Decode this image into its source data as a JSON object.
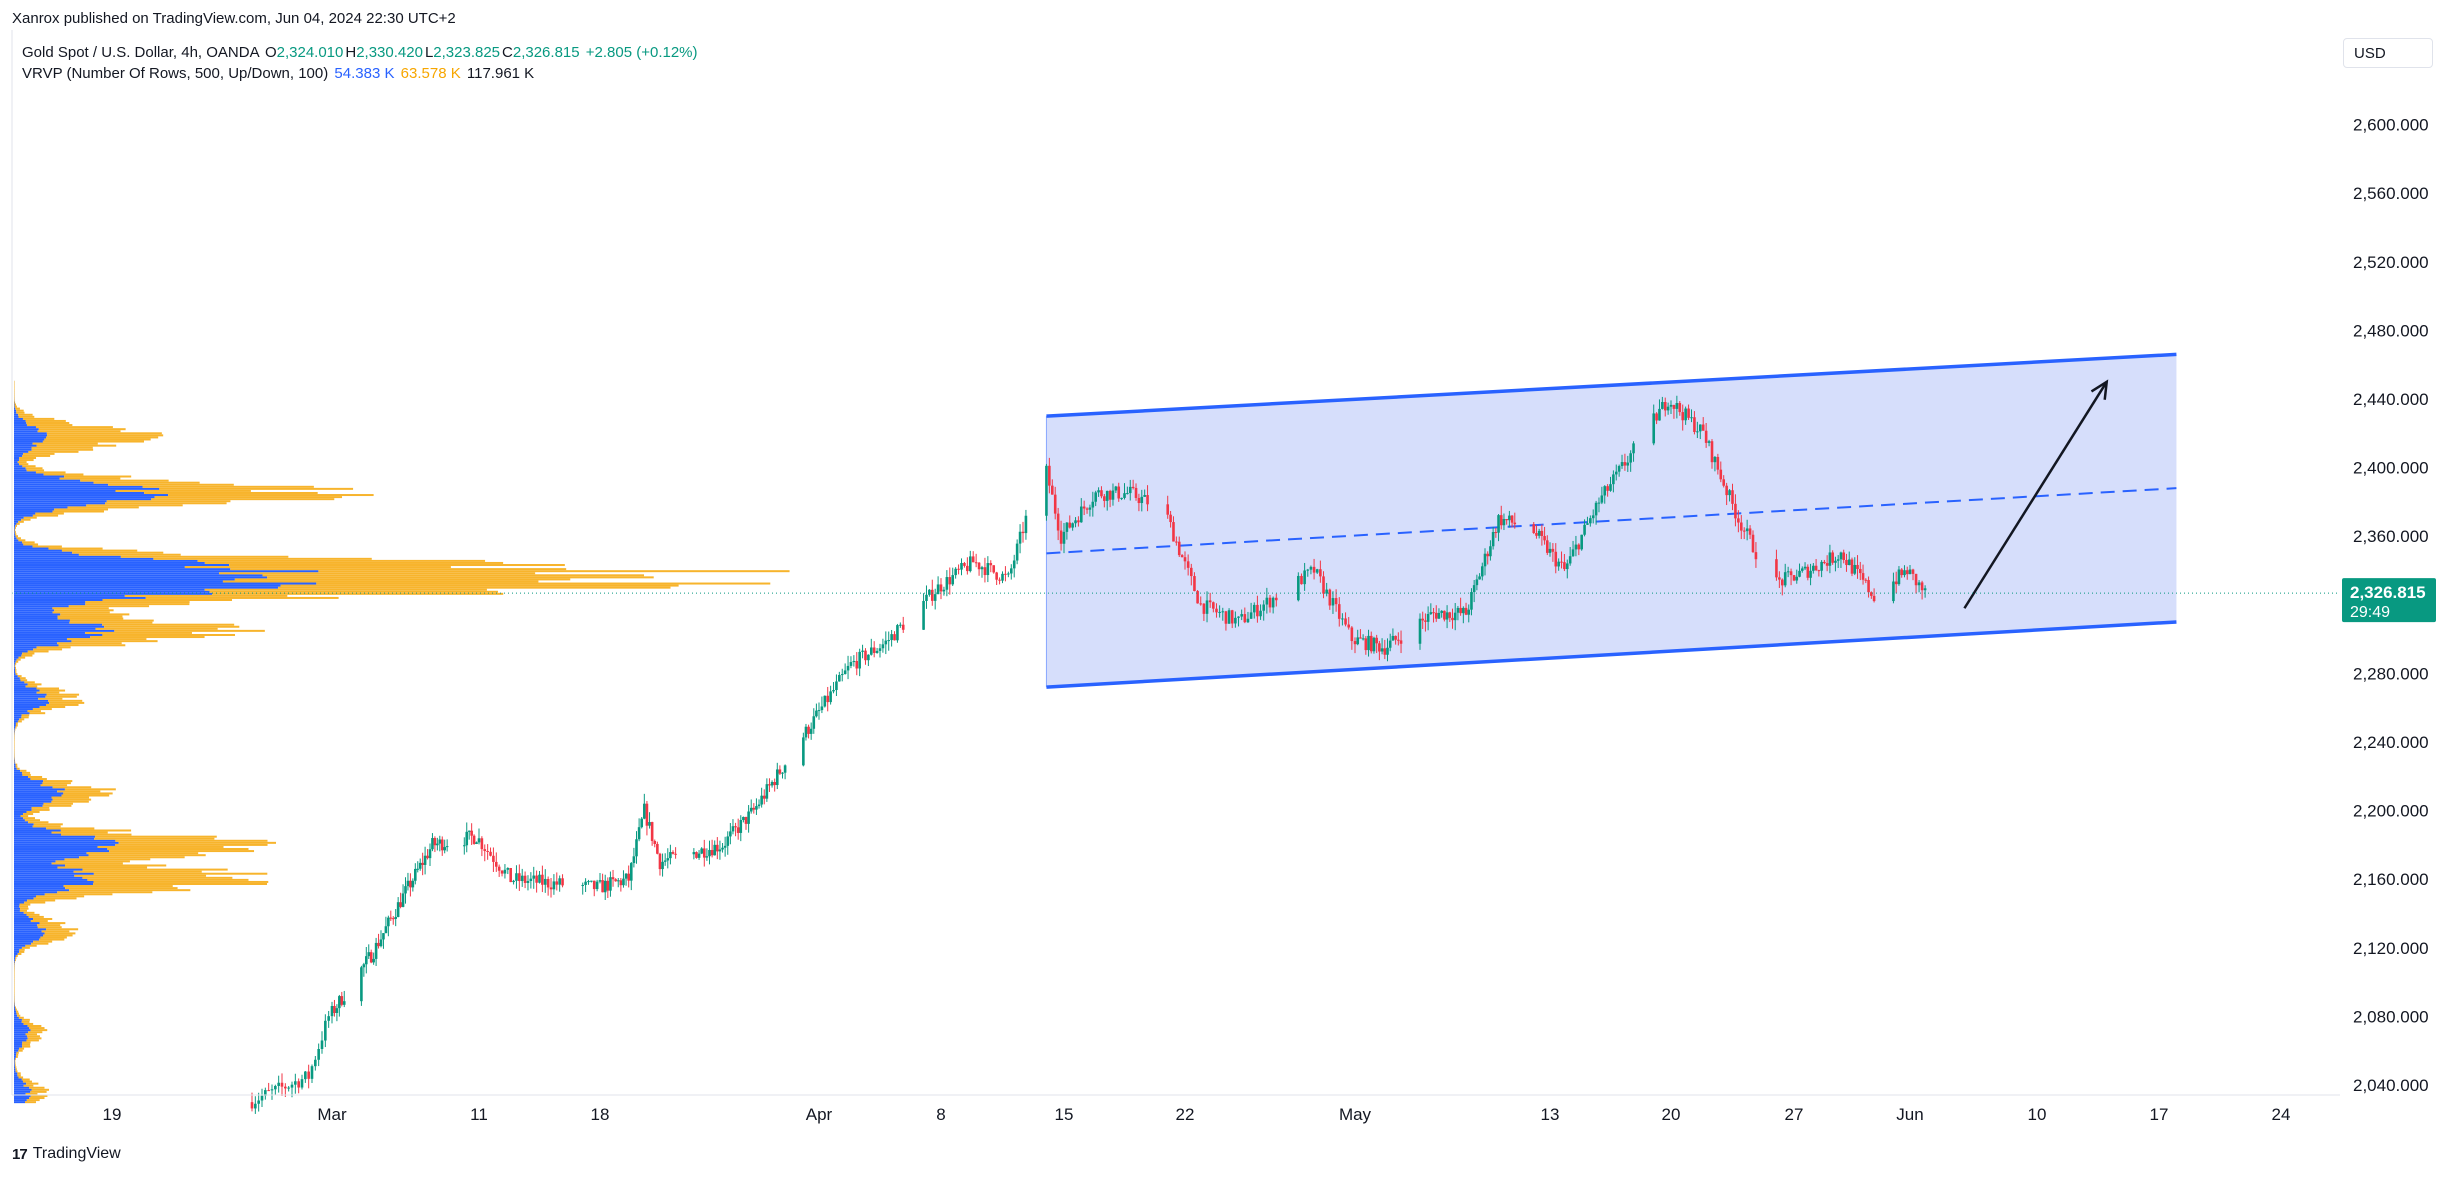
{
  "header": {
    "published": "Xanrox published on TradingView.com, Jun 04, 2024 22:30 UTC+2",
    "symbol": "Gold Spot / U.S. Dollar, 4h, OANDA",
    "ohlc": [
      {
        "label": "O",
        "value": "2,324.010"
      },
      {
        "label": "H",
        "value": "2,330.420"
      },
      {
        "label": "L",
        "value": "2,323.825"
      },
      {
        "label": "C",
        "value": "2,326.815"
      }
    ],
    "change": "+2.805 (+0.12%)",
    "vrvp_label": "VRVP (Number Of Rows, 500, Up/Down, 100)",
    "vrvp_up": "54.383 K",
    "vrvp_down": "63.578 K",
    "vrvp_total": "117.961 K"
  },
  "currency": "USD",
  "footer": {
    "logo": "17",
    "brand": "TradingView"
  },
  "price_badge": {
    "price": "2,326.815",
    "countdown": "29:49",
    "color": "#089981"
  },
  "colors": {
    "up": "#089981",
    "down": "#f23645",
    "channel_line": "#2962ff",
    "channel_fill": "#d4dcfb",
    "vp_up": "#2962ff",
    "vp_down": "#f7b42c"
  },
  "chart_data": {
    "type": "candlestick",
    "title": "Gold Spot / U.S. Dollar, 4h, OANDA",
    "current_price": 2326.815,
    "ylim": [
      2030,
      2640
    ],
    "y_ticks": [
      2040,
      2080,
      2120,
      2160,
      2200,
      2240,
      2280,
      2320,
      2360,
      2400,
      2440,
      2480,
      2520,
      2560,
      2600
    ],
    "y_tick_labels": [
      "2,040.000",
      "2,080.000",
      "2,120.000",
      "2,160.000",
      "2,200.000",
      "2,240.000",
      "2,280.000",
      "2,320.000",
      "2,360.000",
      "2,400.000",
      "2,440.000",
      "2,480.000",
      "2,520.000",
      "2,560.000",
      "2,600.000"
    ],
    "x_tick_labels": [
      "19",
      "Mar",
      "11",
      "18",
      "Apr",
      "8",
      "15",
      "22",
      "May",
      "13",
      "20",
      "27",
      "Jun",
      "10",
      "17",
      "24"
    ],
    "x_tick_dates": [
      "2024-02-19",
      "2024-03-01",
      "2024-03-11",
      "2024-03-18",
      "2024-04-01",
      "2024-04-08",
      "2024-04-15",
      "2024-04-22",
      "2024-05-01",
      "2024-05-13",
      "2024-05-20",
      "2024-05-27",
      "2024-06-03",
      "2024-06-10",
      "2024-06-17",
      "2024-06-24"
    ],
    "price_path": [
      [
        "2024-02-26",
        2030
      ],
      [
        "2024-02-29",
        2045
      ],
      [
        "2024-03-01",
        2080
      ],
      [
        "2024-03-04",
        2118
      ],
      [
        "2024-03-06",
        2150
      ],
      [
        "2024-03-08",
        2180
      ],
      [
        "2024-03-11",
        2185
      ],
      [
        "2024-03-13",
        2160
      ],
      [
        "2024-03-15",
        2158
      ],
      [
        "2024-03-18",
        2155
      ],
      [
        "2024-03-20",
        2160
      ],
      [
        "2024-03-21",
        2200
      ],
      [
        "2024-03-22",
        2170
      ],
      [
        "2024-03-26",
        2180
      ],
      [
        "2024-03-28",
        2200
      ],
      [
        "2024-04-01",
        2255
      ],
      [
        "2024-04-03",
        2285
      ],
      [
        "2024-04-05",
        2298
      ],
      [
        "2024-04-08",
        2330
      ],
      [
        "2024-04-10",
        2345
      ],
      [
        "2024-04-12",
        2335
      ],
      [
        "2024-04-14",
        2405
      ],
      [
        "2024-04-15",
        2360
      ],
      [
        "2024-04-17",
        2385
      ],
      [
        "2024-04-19",
        2385
      ],
      [
        "2024-04-21",
        2375
      ],
      [
        "2024-04-23",
        2320
      ],
      [
        "2024-04-25",
        2310
      ],
      [
        "2024-04-27",
        2325
      ],
      [
        "2024-04-29",
        2340
      ],
      [
        "2024-05-01",
        2300
      ],
      [
        "2024-05-03",
        2295
      ],
      [
        "2024-05-06",
        2315
      ],
      [
        "2024-05-08",
        2315
      ],
      [
        "2024-05-10",
        2370
      ],
      [
        "2024-05-12",
        2365
      ],
      [
        "2024-05-14",
        2340
      ],
      [
        "2024-05-16",
        2380
      ],
      [
        "2024-05-18",
        2410
      ],
      [
        "2024-05-20",
        2440
      ],
      [
        "2024-05-22",
        2420
      ],
      [
        "2024-05-24",
        2370
      ],
      [
        "2024-05-26",
        2332
      ],
      [
        "2024-05-28",
        2340
      ],
      [
        "2024-05-30",
        2350
      ],
      [
        "2024-06-01",
        2325
      ],
      [
        "2024-06-03",
        2340
      ],
      [
        "2024-06-04",
        2326.8
      ]
    ],
    "channel": {
      "upper": [
        [
          "2024-04-14",
          2430
        ],
        [
          "2024-06-18",
          2466
        ]
      ],
      "middle": [
        [
          "2024-04-14",
          2350
        ],
        [
          "2024-06-18",
          2388
        ]
      ],
      "lower": [
        [
          "2024-04-14",
          2272
        ],
        [
          "2024-06-18",
          2310
        ]
      ]
    },
    "arrow": {
      "from": [
        "2024-06-06",
        2318
      ],
      "to": [
        "2024-06-14",
        2450
      ]
    },
    "volume_profile": {
      "price_range": [
        2030,
        2450
      ],
      "peak_price": 2340,
      "peaks": [
        {
          "price": 2418,
          "up": 2,
          "down": 7
        },
        {
          "price": 2385,
          "up": 9,
          "down": 12
        },
        {
          "price": 2340,
          "up": 14,
          "down": 22
        },
        {
          "price": 2330,
          "up": 11,
          "down": 16
        },
        {
          "price": 2305,
          "up": 6,
          "down": 9
        },
        {
          "price": 2265,
          "up": 2,
          "down": 2
        },
        {
          "price": 2210,
          "up": 3,
          "down": 3
        },
        {
          "price": 2180,
          "up": 6,
          "down": 9
        },
        {
          "price": 2160,
          "up": 5,
          "down": 11
        },
        {
          "price": 2130,
          "up": 2,
          "down": 2
        },
        {
          "price": 2070,
          "up": 1,
          "down": 1
        },
        {
          "price": 2035,
          "up": 1,
          "down": 1
        }
      ]
    }
  }
}
